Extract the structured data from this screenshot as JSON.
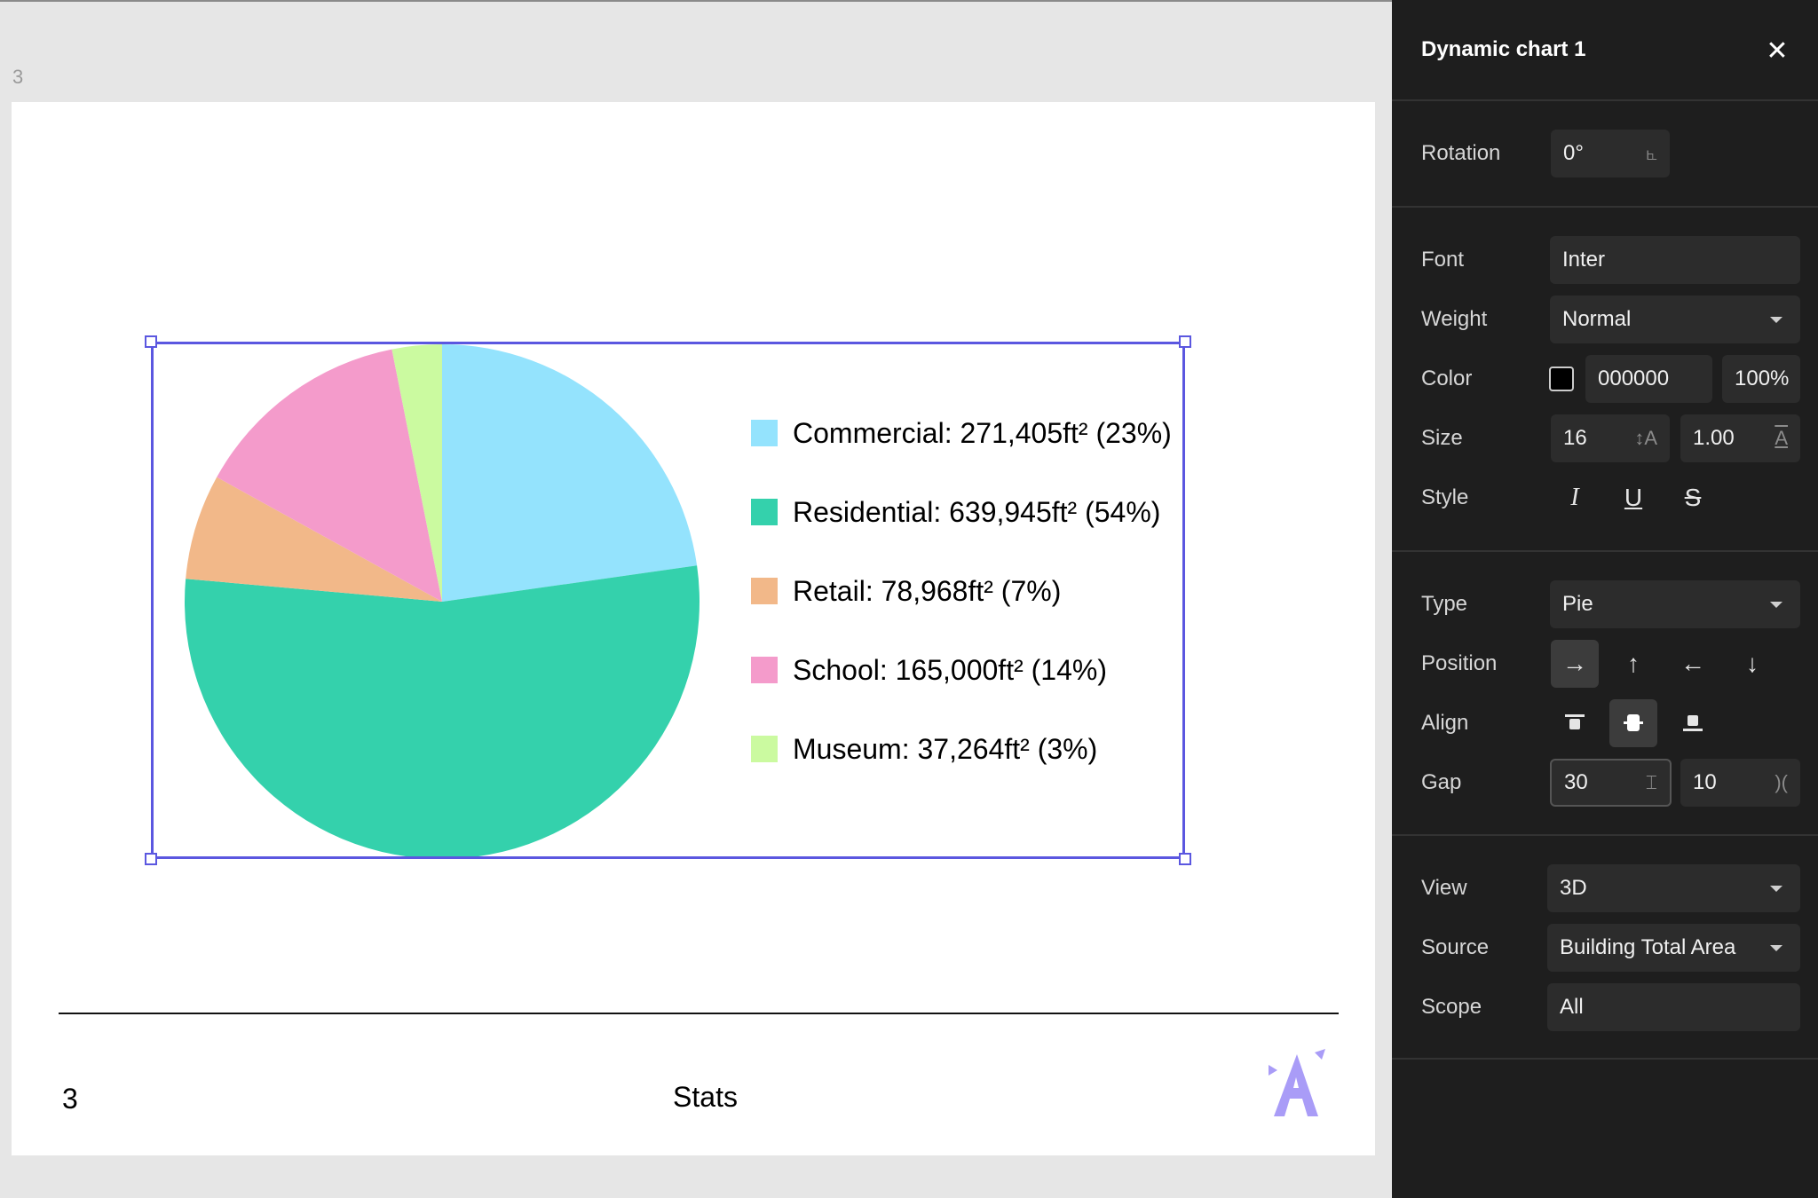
{
  "canvas": {
    "page_label": "3",
    "footer": {
      "page_number": "3",
      "title": "Stats"
    }
  },
  "chart_data": {
    "type": "pie",
    "unit": "ft²",
    "slices": [
      {
        "label": "Commercial",
        "value": 271405,
        "percent": 23,
        "color": "#94e3fd",
        "legend": "Commercial: 271,405ft² (23%)"
      },
      {
        "label": "Residential",
        "value": 639945,
        "percent": 54,
        "color": "#34d1ac",
        "legend": "Residential: 639,945ft² (54%)"
      },
      {
        "label": "Retail",
        "value": 78968,
        "percent": 7,
        "color": "#f2b889",
        "legend": "Retail: 78,968ft² (7%)"
      },
      {
        "label": "School",
        "value": 165000,
        "percent": 14,
        "color": "#f49bcb",
        "legend": "School: 165,000ft² (14%)"
      },
      {
        "label": "Museum",
        "value": 37264,
        "percent": 3,
        "color": "#cbfaa0",
        "legend": "Museum: 37,264ft² (3%)"
      }
    ],
    "legend_position": "right"
  },
  "panel": {
    "title": "Dynamic chart 1",
    "close_icon": "close-icon",
    "rotation": {
      "label": "Rotation",
      "value": "0°"
    },
    "font": {
      "label": "Font",
      "value": "Inter"
    },
    "weight": {
      "label": "Weight",
      "value": "Normal"
    },
    "color": {
      "label": "Color",
      "swatch": "#000000",
      "hex": "000000",
      "opacity": "100%"
    },
    "size": {
      "label": "Size",
      "value": "16",
      "line_height": "1.00"
    },
    "style": {
      "label": "Style",
      "italic": "I",
      "underline": "U",
      "strike": "S"
    },
    "type": {
      "label": "Type",
      "value": "Pie"
    },
    "position": {
      "label": "Position",
      "options": [
        "→",
        "↑",
        "←",
        "↓"
      ],
      "active": 0
    },
    "align": {
      "label": "Align",
      "active": 1
    },
    "gap": {
      "label": "Gap",
      "value1": "30",
      "value2": "10"
    },
    "view": {
      "label": "View",
      "value": "3D"
    },
    "source": {
      "label": "Source",
      "value": "Building Total Area"
    },
    "scope": {
      "label": "Scope",
      "value": "All"
    }
  },
  "colors": {
    "selection": "#5b57e0",
    "logo": "#a99cf7"
  }
}
